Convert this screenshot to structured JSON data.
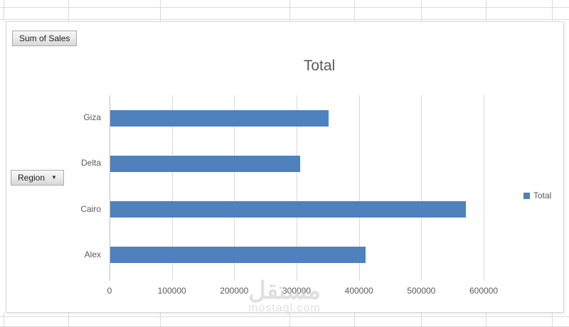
{
  "chart": {
    "title": "Total",
    "values_field_button": "Sum of Sales",
    "axis_field_button": "Region",
    "legend_label": "Total"
  },
  "chart_data": {
    "type": "bar",
    "orientation": "horizontal",
    "title": "Total",
    "categories": [
      "Giza",
      "Delta",
      "Cairo",
      "Alex"
    ],
    "series": [
      {
        "name": "Total",
        "values": [
          350000,
          305000,
          570000,
          410000
        ]
      }
    ],
    "xlim": [
      0,
      600000
    ],
    "xticks": [
      "0",
      "100000",
      "200000",
      "300000",
      "400000",
      "500000",
      "600000"
    ],
    "ylabel": "",
    "xlabel": "",
    "grid": true,
    "legend_position": "right",
    "bar_color": "#4F81BD",
    "axis_text_color": "#595959"
  },
  "watermark": {
    "arabic": "مستقل",
    "latin": "mostaql.com"
  }
}
